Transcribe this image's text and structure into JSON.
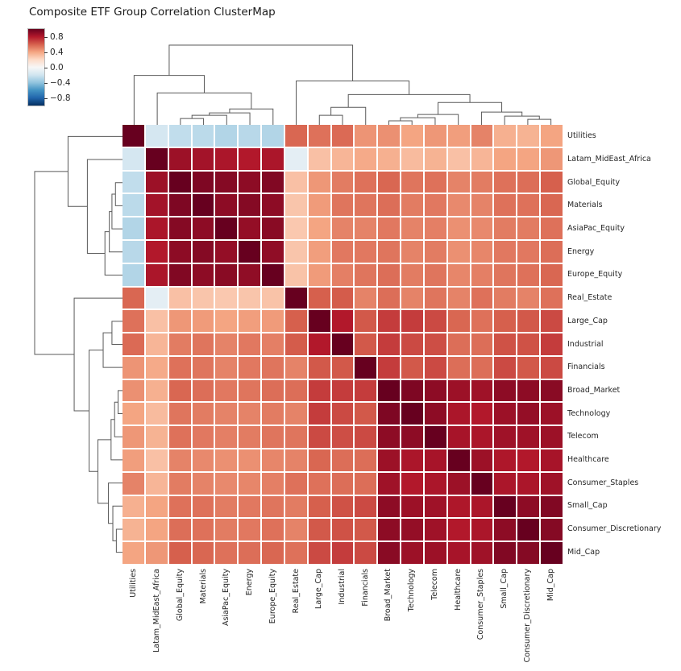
{
  "title": "Composite ETF Group Correlation ClusterMap",
  "colorbar": {
    "tick_labels": [
      "0.8",
      "0.4",
      "0.0",
      "−0.4",
      "−0.8"
    ],
    "tick_values": [
      0.8,
      0.4,
      0.0,
      -0.4,
      -0.8
    ],
    "vmin": -1,
    "vmax": 1
  },
  "chart_data": {
    "type": "heatmap",
    "title": "Composite ETF Group Correlation ClusterMap",
    "colormap": "RdBu_r",
    "vmin": -1,
    "vmax": 1,
    "grid": false,
    "gap_color": "#ffffff",
    "dendrogram_color": "#595959",
    "label_color": "#262626",
    "colormap_stops": [
      "#053061",
      "#2166ac",
      "#4393c3",
      "#92c5de",
      "#d1e5f0",
      "#f7f7f7",
      "#fddbc7",
      "#f4a582",
      "#d6604d",
      "#b2182b",
      "#67001f"
    ],
    "labels": [
      "Utilities",
      "Latam_MidEast_Africa",
      "Global_Equity",
      "Materials",
      "AsiaPac_Equity",
      "Energy",
      "Europe_Equity",
      "Real_Estate",
      "Large_Cap",
      "Industrial",
      "Financials",
      "Broad_Market",
      "Technology",
      "Telecom",
      "Healthcare",
      "Consumer_Staples",
      "Small_Cap",
      "Consumer_Discretionary",
      "Mid_Cap"
    ],
    "matrix": [
      [
        1.0,
        -0.18,
        -0.25,
        -0.27,
        -0.3,
        -0.28,
        -0.3,
        0.58,
        0.55,
        0.57,
        0.45,
        0.46,
        0.4,
        0.44,
        0.42,
        0.5,
        0.36,
        0.35,
        0.4
      ],
      [
        -0.18,
        1.0,
        0.86,
        0.84,
        0.82,
        0.8,
        0.82,
        -0.1,
        0.3,
        0.34,
        0.38,
        0.36,
        0.32,
        0.35,
        0.3,
        0.34,
        0.4,
        0.4,
        0.44
      ],
      [
        -0.25,
        0.86,
        1.0,
        0.94,
        0.92,
        0.9,
        0.93,
        0.3,
        0.44,
        0.52,
        0.55,
        0.58,
        0.54,
        0.55,
        0.5,
        0.52,
        0.55,
        0.56,
        0.6
      ],
      [
        -0.27,
        0.84,
        0.94,
        1.0,
        0.9,
        0.92,
        0.9,
        0.28,
        0.43,
        0.54,
        0.54,
        0.56,
        0.52,
        0.53,
        0.48,
        0.5,
        0.55,
        0.55,
        0.58
      ],
      [
        -0.3,
        0.82,
        0.92,
        0.9,
        1.0,
        0.88,
        0.91,
        0.27,
        0.4,
        0.5,
        0.5,
        0.53,
        0.5,
        0.51,
        0.46,
        0.48,
        0.52,
        0.52,
        0.55
      ],
      [
        -0.28,
        0.8,
        0.9,
        0.92,
        0.88,
        1.0,
        0.89,
        0.28,
        0.42,
        0.53,
        0.53,
        0.54,
        0.5,
        0.52,
        0.46,
        0.49,
        0.53,
        0.53,
        0.56
      ],
      [
        -0.3,
        0.82,
        0.93,
        0.9,
        0.91,
        0.89,
        1.0,
        0.29,
        0.43,
        0.51,
        0.54,
        0.56,
        0.52,
        0.54,
        0.49,
        0.51,
        0.54,
        0.55,
        0.58
      ],
      [
        0.58,
        -0.1,
        0.3,
        0.28,
        0.27,
        0.28,
        0.29,
        1.0,
        0.6,
        0.61,
        0.5,
        0.56,
        0.5,
        0.54,
        0.5,
        0.55,
        0.52,
        0.5,
        0.55
      ],
      [
        0.55,
        0.3,
        0.44,
        0.43,
        0.4,
        0.42,
        0.43,
        0.6,
        1.0,
        0.8,
        0.62,
        0.7,
        0.7,
        0.66,
        0.58,
        0.55,
        0.6,
        0.62,
        0.66
      ],
      [
        0.57,
        0.34,
        0.52,
        0.54,
        0.5,
        0.53,
        0.51,
        0.61,
        0.8,
        1.0,
        0.62,
        0.7,
        0.66,
        0.65,
        0.56,
        0.56,
        0.64,
        0.64,
        0.7
      ],
      [
        0.45,
        0.38,
        0.55,
        0.54,
        0.5,
        0.53,
        0.54,
        0.5,
        0.62,
        0.62,
        1.0,
        0.7,
        0.62,
        0.66,
        0.56,
        0.56,
        0.66,
        0.62,
        0.66
      ],
      [
        0.46,
        0.36,
        0.58,
        0.56,
        0.53,
        0.54,
        0.56,
        0.56,
        0.7,
        0.7,
        0.7,
        1.0,
        0.94,
        0.9,
        0.86,
        0.85,
        0.9,
        0.9,
        0.91
      ],
      [
        0.4,
        0.32,
        0.54,
        0.52,
        0.5,
        0.5,
        0.52,
        0.5,
        0.7,
        0.66,
        0.62,
        0.94,
        1.0,
        0.9,
        0.82,
        0.8,
        0.86,
        0.88,
        0.86
      ],
      [
        0.44,
        0.35,
        0.55,
        0.53,
        0.51,
        0.52,
        0.54,
        0.54,
        0.66,
        0.65,
        0.66,
        0.9,
        0.9,
        1.0,
        0.83,
        0.82,
        0.85,
        0.85,
        0.86
      ],
      [
        0.42,
        0.3,
        0.5,
        0.48,
        0.46,
        0.46,
        0.49,
        0.5,
        0.58,
        0.56,
        0.56,
        0.86,
        0.82,
        0.83,
        1.0,
        0.86,
        0.81,
        0.8,
        0.83
      ],
      [
        0.5,
        0.34,
        0.52,
        0.5,
        0.48,
        0.49,
        0.51,
        0.55,
        0.55,
        0.56,
        0.56,
        0.85,
        0.8,
        0.82,
        0.86,
        1.0,
        0.82,
        0.82,
        0.85
      ],
      [
        0.36,
        0.4,
        0.55,
        0.55,
        0.52,
        0.53,
        0.54,
        0.52,
        0.6,
        0.64,
        0.66,
        0.9,
        0.86,
        0.85,
        0.81,
        0.82,
        1.0,
        0.9,
        0.93
      ],
      [
        0.35,
        0.4,
        0.56,
        0.55,
        0.52,
        0.53,
        0.55,
        0.5,
        0.62,
        0.64,
        0.62,
        0.9,
        0.88,
        0.85,
        0.8,
        0.82,
        0.9,
        1.0,
        0.92
      ],
      [
        0.4,
        0.44,
        0.6,
        0.58,
        0.55,
        0.56,
        0.58,
        0.55,
        0.66,
        0.7,
        0.66,
        0.91,
        0.86,
        0.86,
        0.83,
        0.85,
        0.93,
        0.92,
        1.0
      ]
    ],
    "dendrogram_tree": {
      "h": 1.0,
      "c": [
        {
          "h": 0.62,
          "c": [
            0,
            {
              "h": 0.4,
              "c": [
                1,
                {
                  "h": 0.2,
                  "c": [
                    {
                      "h": 0.15,
                      "c": [
                        {
                          "h": 0.12,
                          "c": [
                            {
                              "h": 0.08,
                              "c": [
                                2,
                                3
                              ]
                            },
                            4
                          ]
                        },
                        5
                      ]
                    },
                    6
                  ]
                }
              ]
            }
          ]
        },
        {
          "h": 0.55,
          "c": [
            7,
            {
              "h": 0.38,
              "c": [
                {
                  "h": 0.22,
                  "c": [
                    {
                      "h": 0.12,
                      "c": [
                        8,
                        9
                      ]
                    },
                    10
                  ]
                },
                {
                  "h": 0.28,
                  "c": [
                    {
                      "h": 0.13,
                      "c": [
                        {
                          "h": 0.09,
                          "c": [
                            {
                              "h": 0.05,
                              "c": [
                                11,
                                12
                              ]
                            },
                            13
                          ]
                        },
                        14
                      ]
                    },
                    {
                      "h": 0.16,
                      "c": [
                        15,
                        {
                          "h": 0.11,
                          "c": [
                            16,
                            {
                              "h": 0.07,
                              "c": [
                                17,
                                18
                              ]
                            }
                          ]
                        }
                      ]
                    }
                  ]
                }
              ]
            }
          ]
        }
      ]
    }
  }
}
